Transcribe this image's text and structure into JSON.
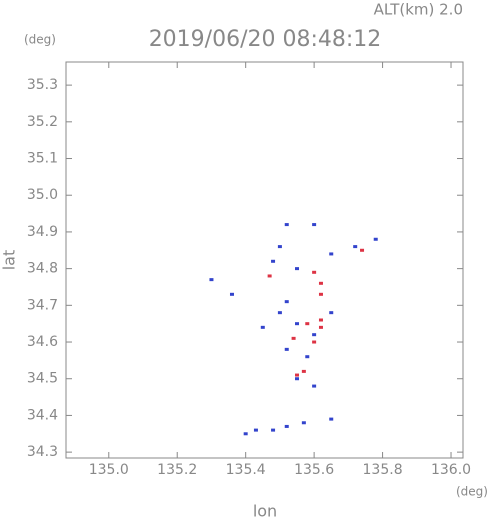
{
  "chart_data": {
    "type": "scatter",
    "title": "2019/06/20 08:48:12",
    "subtitle": "ALT(km) 2.0",
    "y_unit": "(deg)",
    "x_unit": "(deg)",
    "x_label": "lon",
    "y_label": "lat",
    "xlim": [
      134.875,
      136.035
    ],
    "ylim": [
      34.284,
      35.363
    ],
    "xticks": [
      {
        "value": 135,
        "label": "135.0"
      },
      135.2,
      135.4,
      135.6,
      135.8,
      {
        "value": 136,
        "label": "136.0"
      }
    ],
    "yticks": [
      35.3,
      35.2,
      35.1,
      {
        "value": 35,
        "label": "35.0"
      },
      34.9,
      34.8,
      34.7,
      34.6,
      34.5,
      34.4,
      34.3
    ],
    "series": [
      {
        "color": "#3344cc",
        "x": [
          135.52,
          135.6,
          135.5,
          135.48,
          135.55,
          135.65,
          135.72,
          135.78,
          135.3,
          135.52,
          135.5,
          135.55,
          135.65,
          135.45,
          135.6,
          135.52,
          135.58,
          135.55,
          135.6,
          135.43,
          135.48,
          135.52,
          135.57,
          135.65,
          135.4,
          135.36
        ],
        "y": [
          34.92,
          34.92,
          34.86,
          34.82,
          34.8,
          34.84,
          34.86,
          34.88,
          34.77,
          34.71,
          34.68,
          34.65,
          34.68,
          34.64,
          34.62,
          34.58,
          34.56,
          34.5,
          34.48,
          34.36,
          34.36,
          34.37,
          34.38,
          34.39,
          34.35,
          34.73
        ]
      },
      {
        "color": "#dd3344",
        "x": [
          135.6,
          135.62,
          135.74,
          135.58,
          135.62,
          135.54,
          135.6,
          135.57,
          135.55,
          135.62,
          135.47,
          135.62
        ],
        "y": [
          34.79,
          34.76,
          34.85,
          34.65,
          34.64,
          34.61,
          34.6,
          34.52,
          34.51,
          34.66,
          34.78,
          34.73
        ]
      }
    ]
  }
}
